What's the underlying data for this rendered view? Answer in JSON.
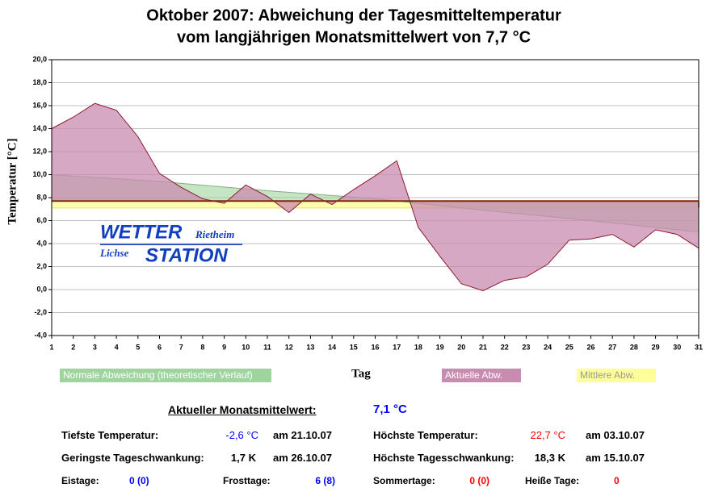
{
  "chart_data": {
    "type": "area",
    "title": [
      "Oktober 2007: Abweichung der Tagesmitteltemperatur",
      "vom langjährigen Monatsmittelwert von 7,7 °C"
    ],
    "x_label": "Tag",
    "y_label": "Temperatur [°C]",
    "baseline": 7.7,
    "x": [
      1,
      2,
      3,
      4,
      5,
      6,
      7,
      8,
      9,
      10,
      11,
      12,
      13,
      14,
      15,
      16,
      17,
      18,
      19,
      20,
      21,
      22,
      23,
      24,
      25,
      26,
      27,
      28,
      29,
      30,
      31
    ],
    "xlim": [
      1,
      31
    ],
    "xticks": [
      1,
      2,
      3,
      4,
      5,
      6,
      7,
      8,
      9,
      10,
      11,
      12,
      13,
      14,
      15,
      16,
      17,
      18,
      19,
      20,
      21,
      22,
      23,
      24,
      25,
      26,
      27,
      28,
      29,
      30,
      31
    ],
    "ylim": [
      -4,
      20
    ],
    "yticks": [
      {
        "value": -4,
        "label": "-4,0"
      },
      {
        "value": -2,
        "label": "-2,0"
      },
      {
        "value": 0,
        "label": "0,0"
      },
      {
        "value": 2,
        "label": "2,0"
      },
      {
        "value": 4,
        "label": "4,0"
      },
      {
        "value": 6,
        "label": "6,0"
      },
      {
        "value": 8,
        "label": "8,0"
      },
      {
        "value": 10,
        "label": "10,0"
      },
      {
        "value": 12,
        "label": "12,0"
      },
      {
        "value": 14,
        "label": "14,0"
      },
      {
        "value": 16,
        "label": "16,0"
      },
      {
        "value": 18,
        "label": "18,0"
      },
      {
        "value": 20,
        "label": "20,0"
      }
    ],
    "grid": true,
    "series": [
      {
        "name": "Mittlere Abw.",
        "color": "#ffff99",
        "x": [
          1,
          31
        ],
        "values": [
          7.1,
          7.1
        ]
      },
      {
        "name": "Normale Abweichung (theoretischer Verlauf)",
        "color": "#9fd49f",
        "x": [
          1,
          6,
          11,
          16,
          21,
          26,
          31
        ],
        "values": [
          10.0,
          9.4,
          8.6,
          7.9,
          6.9,
          6.0,
          5.0
        ]
      },
      {
        "name": "Aktuelle Abw.",
        "color": "#c98bb0",
        "values": [
          14.0,
          15.0,
          16.2,
          15.6,
          13.3,
          10.1,
          8.9,
          7.9,
          7.5,
          9.1,
          8.1,
          6.7,
          8.3,
          7.4,
          8.7,
          9.9,
          11.2,
          5.4,
          2.9,
          0.5,
          -0.1,
          0.8,
          1.1,
          2.2,
          4.3,
          4.4,
          4.8,
          3.7,
          5.2,
          4.8,
          3.6
        ]
      }
    ]
  },
  "logo": {
    "top": "WETTER",
    "top_small": "Rietheim",
    "bottom_small": "Lichse",
    "bottom": "STATION"
  },
  "stats": {
    "mean_label": "Aktueller Monatsmittelwert:",
    "mean_value": "7,1 °C",
    "rows": [
      [
        "Tiefste Temperatur:",
        "-2,6 °C",
        "am 21.10.07",
        "Höchste Temperatur:",
        "22,7 °C",
        "am 03.10.07"
      ],
      [
        "Geringste Tageschwankung:",
        "1,7 K",
        "am 26.10.07",
        "Höchste Tagesschwankung:",
        "18,3 K",
        "am 15.10.07"
      ]
    ],
    "days": [
      "Eistage:",
      "0 (0)",
      "Frosttage:",
      "6 (8)",
      "Sommertage:",
      "0 (0)",
      "Heiße Tage:",
      "0"
    ]
  }
}
